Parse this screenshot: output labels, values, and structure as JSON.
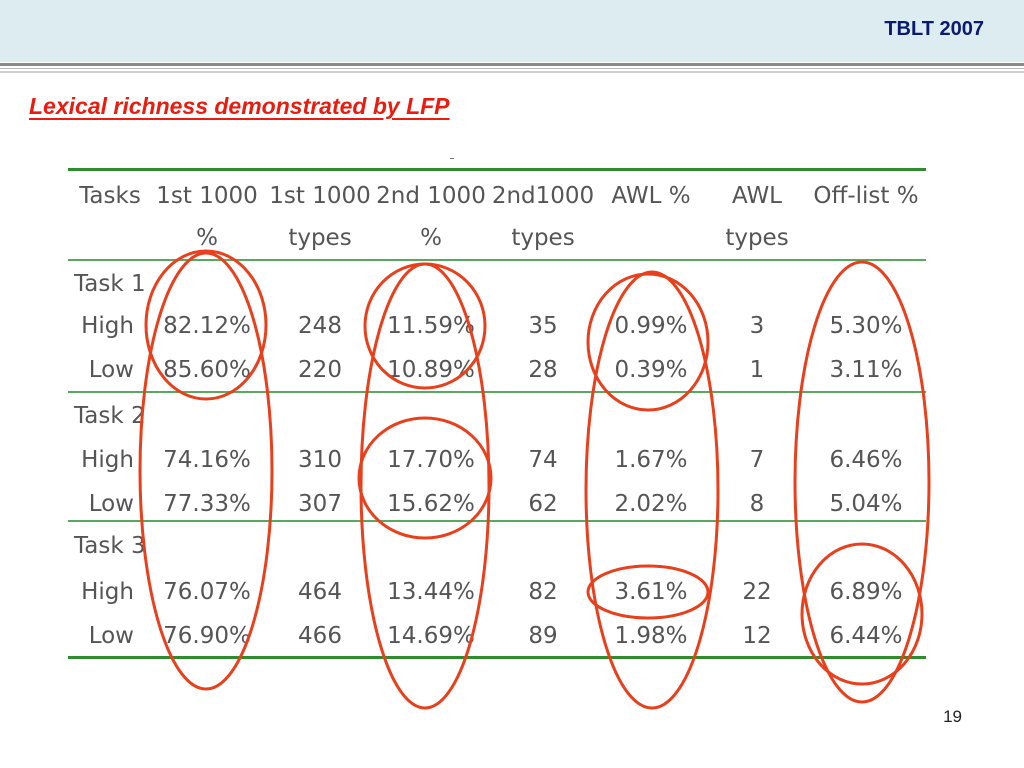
{
  "header": {
    "title": "TBLT 2007",
    "band_color": "#dcecf0",
    "title_color": "#0a1a6e"
  },
  "slide": {
    "title": "Lexical richness demonstrated by LFP",
    "title_color": "#ea1c0f",
    "page_number": "19",
    "highlight_color": "#e8401c",
    "rule_color": "#2e8b2e"
  },
  "table": {
    "header_line1": [
      "Tasks",
      "1st 1000",
      "1st 1000",
      "2nd 1000",
      "2nd1000",
      "AWL %",
      "AWL",
      "Off-list %"
    ],
    "header_line2": [
      "",
      "%",
      "types",
      "%",
      "types",
      "",
      "types",
      ""
    ],
    "groups": [
      {
        "task": "Task 1",
        "rows": [
          [
            "High",
            "82.12%",
            "248",
            "11.59%",
            "35",
            "0.99%",
            "3",
            "5.30%"
          ],
          [
            "Low",
            "85.60%",
            "220",
            "10.89%",
            "28",
            "0.39%",
            "1",
            "3.11%"
          ]
        ]
      },
      {
        "task": "Task 2",
        "rows": [
          [
            "High",
            "74.16%",
            "310",
            "17.70%",
            "74",
            "1.67%",
            "7",
            "6.46%"
          ],
          [
            "Low",
            "77.33%",
            "307",
            "15.62%",
            "62",
            "2.02%",
            "8",
            "5.04%"
          ]
        ]
      },
      {
        "task": "Task 3",
        "rows": [
          [
            "High",
            "76.07%",
            "464",
            "13.44%",
            "82",
            "3.61%",
            "22",
            "6.89%"
          ],
          [
            "Low",
            "76.90%",
            "466",
            "14.69%",
            "89",
            "1.98%",
            "12",
            "6.44%"
          ]
        ]
      }
    ]
  }
}
